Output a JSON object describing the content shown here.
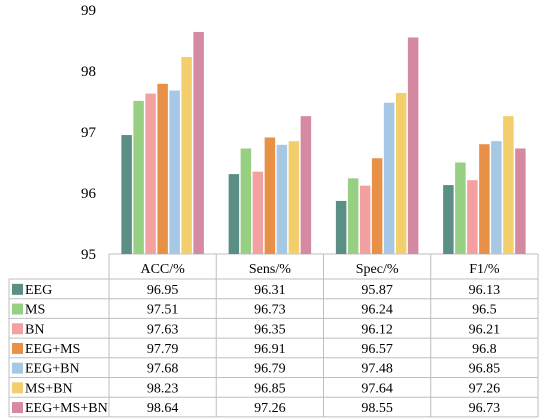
{
  "chart_data": {
    "type": "bar",
    "categories": [
      "ACC/%",
      "Sens/%",
      "Spec/%",
      "F1/%"
    ],
    "ylim": [
      95,
      99
    ],
    "yticks": [
      95,
      96,
      97,
      98,
      99
    ],
    "grid": false,
    "legend": "table-below",
    "series": [
      {
        "name": "EEG",
        "color": "#5b8f85",
        "values": [
          96.95,
          96.31,
          95.87,
          96.13
        ],
        "labels": [
          "96.95",
          "96.31",
          "95.87",
          "96.13"
        ]
      },
      {
        "name": "MS",
        "color": "#97cf83",
        "values": [
          97.51,
          96.73,
          96.24,
          96.5
        ],
        "labels": [
          "97.51",
          "96.73",
          "96.24",
          "96.5"
        ]
      },
      {
        "name": "BN",
        "color": "#f2a1a0",
        "values": [
          97.63,
          96.35,
          96.12,
          96.21
        ],
        "labels": [
          "97.63",
          "96.35",
          "96.12",
          "96.21"
        ]
      },
      {
        "name": "EEG+MS",
        "color": "#e89146",
        "values": [
          97.79,
          96.91,
          96.57,
          96.8
        ],
        "labels": [
          "97.79",
          "96.91",
          "96.57",
          "96.8"
        ]
      },
      {
        "name": "EEG+BN",
        "color": "#a7c8e4",
        "values": [
          97.68,
          96.79,
          97.48,
          96.85
        ],
        "labels": [
          "97.68",
          "96.79",
          "97.48",
          "96.85"
        ]
      },
      {
        "name": "MS+BN",
        "color": "#f2cf6c",
        "values": [
          98.23,
          96.85,
          97.64,
          97.26
        ],
        "labels": [
          "98.23",
          "96.85",
          "97.64",
          "97.26"
        ]
      },
      {
        "name": "EEG+MS+BN",
        "color": "#d58aa2",
        "values": [
          98.64,
          97.26,
          98.55,
          96.73
        ],
        "labels": [
          "98.64",
          "97.26",
          "98.55",
          "96.73"
        ]
      }
    ]
  }
}
